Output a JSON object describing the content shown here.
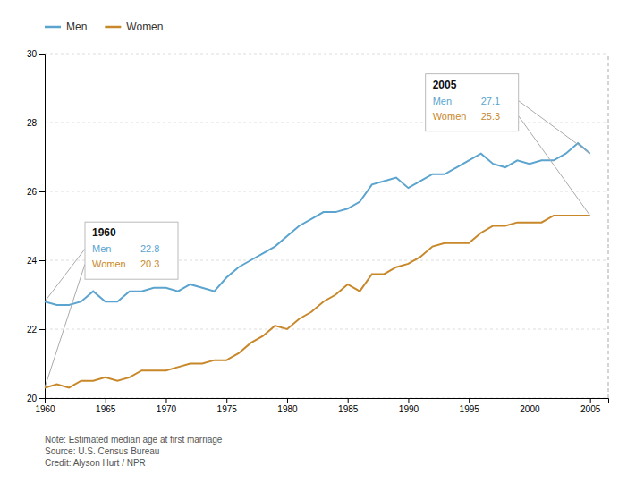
{
  "chart_data": {
    "type": "line",
    "x": [
      1960,
      1961,
      1962,
      1963,
      1964,
      1965,
      1966,
      1967,
      1968,
      1969,
      1970,
      1971,
      1972,
      1973,
      1974,
      1975,
      1976,
      1977,
      1978,
      1979,
      1980,
      1981,
      1982,
      1983,
      1984,
      1985,
      1986,
      1987,
      1988,
      1989,
      1990,
      1991,
      1992,
      1993,
      1994,
      1995,
      1996,
      1997,
      1998,
      1999,
      2000,
      2001,
      2002,
      2003,
      2004,
      2005
    ],
    "series": [
      {
        "name": "Men",
        "color": "#5BA4CF",
        "values": [
          22.8,
          22.7,
          22.7,
          22.8,
          23.1,
          22.8,
          22.8,
          23.1,
          23.1,
          23.2,
          23.2,
          23.1,
          23.3,
          23.2,
          23.1,
          23.5,
          23.8,
          24.0,
          24.2,
          24.4,
          24.7,
          25.0,
          25.2,
          25.4,
          25.4,
          25.5,
          25.7,
          26.2,
          26.3,
          26.4,
          26.1,
          26.3,
          26.5,
          26.5,
          26.7,
          26.9,
          27.1,
          26.8,
          26.7,
          26.9,
          26.8,
          26.9,
          26.9,
          27.1,
          27.4,
          27.1
        ]
      },
      {
        "name": "Women",
        "color": "#C8882A",
        "values": [
          20.3,
          20.4,
          20.3,
          20.5,
          20.5,
          20.6,
          20.5,
          20.6,
          20.8,
          20.8,
          20.8,
          20.9,
          21.0,
          21.0,
          21.1,
          21.1,
          21.3,
          21.6,
          21.8,
          22.1,
          22.0,
          22.3,
          22.5,
          22.8,
          23.0,
          23.3,
          23.1,
          23.6,
          23.6,
          23.8,
          23.9,
          24.1,
          24.4,
          24.5,
          24.5,
          24.5,
          24.8,
          25.0,
          25.0,
          25.1,
          25.1,
          25.1,
          25.3,
          25.3,
          25.3,
          25.3
        ]
      }
    ],
    "xlim": [
      1960,
      2006.5
    ],
    "ylim": [
      20,
      30
    ],
    "xticks": [
      1960,
      1965,
      1970,
      1975,
      1980,
      1985,
      1990,
      1995,
      2000,
      2005
    ],
    "yticks": [
      20,
      22,
      24,
      26,
      28,
      30
    ],
    "grid": true,
    "legend": "top-left",
    "annotations": [
      {
        "x": 1960
      },
      {
        "x": 2005
      }
    ],
    "notes": [
      "Note: Estimated median age at first marriage",
      "Source: U.S. Census Bureau",
      "Credit: Alyson Hurt / NPR"
    ]
  }
}
